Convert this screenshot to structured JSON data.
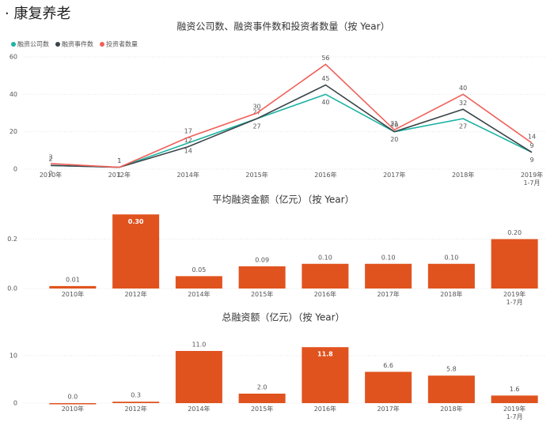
{
  "header": {
    "title": "· 康复养老"
  },
  "chart_data": [
    {
      "type": "line",
      "title": "融资公司数、融资事件数和投资者数量（按 Year）",
      "categories": [
        "2010年",
        "2012年",
        "2014年",
        "2015年",
        "2016年",
        "2017年",
        "2018年",
        "2019年\n1-7月"
      ],
      "series": [
        {
          "name": "融资公司数",
          "color": "#1db3a3",
          "values": [
            2,
            1,
            14,
            27,
            40,
            20,
            27,
            9
          ]
        },
        {
          "name": "融资事件数",
          "color": "#3a4448",
          "values": [
            2,
            1,
            12,
            27,
            45,
            20,
            32,
            9
          ]
        },
        {
          "name": "投资者数量",
          "color": "#f0605a",
          "values": [
            3,
            1,
            17,
            30,
            56,
            21,
            40,
            14
          ]
        }
      ],
      "ylim": [
        0,
        60
      ],
      "yticks": [
        0,
        20,
        40,
        60
      ],
      "legend": "top-left"
    },
    {
      "type": "bar",
      "title": "平均融资金额（亿元）（按 Year）",
      "categories": [
        "2010年",
        "2012年",
        "2014年",
        "2015年",
        "2016年",
        "2017年",
        "2018年",
        "2019年\n1-7月"
      ],
      "values": [
        0.01,
        0.3,
        0.05,
        0.09,
        0.1,
        0.1,
        0.1,
        0.2
      ],
      "value_labels": [
        "0.01",
        "0.30",
        "0.05",
        "0.09",
        "0.10",
        "0.10",
        "0.10",
        "0.20"
      ],
      "color": "#e0531f",
      "ylim": [
        0,
        0.32
      ],
      "yticks": [
        {
          "value": 0,
          "label": "0.0"
        },
        0.2
      ]
    },
    {
      "type": "bar",
      "title": "总融资额（亿元）（按 Year）",
      "categories": [
        "2010年",
        "2012年",
        "2014年",
        "2015年",
        "2016年",
        "2017年",
        "2018年",
        "2019年\n1-7月"
      ],
      "values": [
        0.0,
        0.3,
        11.0,
        2.0,
        11.8,
        6.6,
        5.8,
        1.6
      ],
      "value_labels": [
        "0.0",
        "0.3",
        "11.0",
        "2.0",
        "11.8",
        "6.6",
        "5.8",
        "1.6"
      ],
      "color": "#e0531f",
      "ylim": [
        0,
        13
      ],
      "yticks": [
        0,
        10
      ]
    }
  ]
}
